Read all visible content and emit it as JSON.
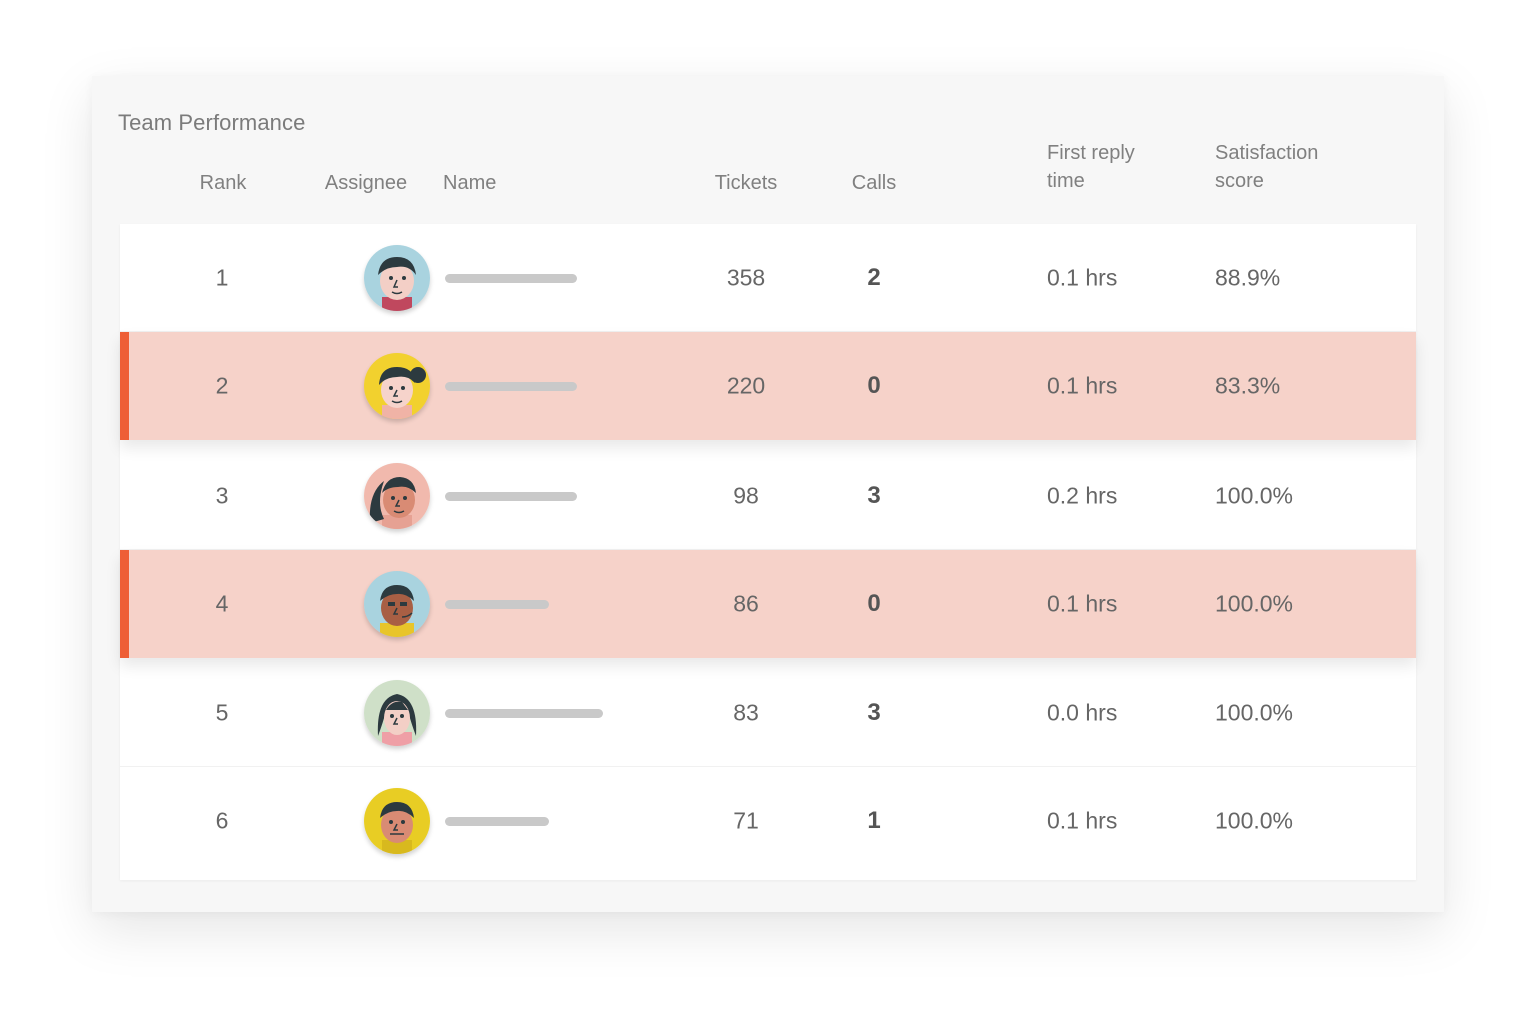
{
  "panel": {
    "title": "Team Performance"
  },
  "columns": {
    "rank": "Rank",
    "assignee": "Assignee",
    "name": "Name",
    "tickets": "Tickets",
    "calls": "Calls",
    "first_reply": "First reply\ntime",
    "satisfaction": "Satisfaction\nscore"
  },
  "rows": [
    {
      "rank": "1",
      "tickets": "358",
      "calls": "2",
      "first_reply": "0.1 hrs",
      "satisfaction": "88.9%",
      "highlighted": false,
      "avatar": "avatar-1"
    },
    {
      "rank": "2",
      "tickets": "220",
      "calls": "0",
      "first_reply": "0.1 hrs",
      "satisfaction": "83.3%",
      "highlighted": true,
      "avatar": "avatar-2"
    },
    {
      "rank": "3",
      "tickets": "98",
      "calls": "3",
      "first_reply": "0.2 hrs",
      "satisfaction": "100.0%",
      "highlighted": false,
      "avatar": "avatar-3"
    },
    {
      "rank": "4",
      "tickets": "86",
      "calls": "0",
      "first_reply": "0.1 hrs",
      "satisfaction": "100.0%",
      "highlighted": true,
      "avatar": "avatar-4"
    },
    {
      "rank": "5",
      "tickets": "83",
      "calls": "3",
      "first_reply": "0.0 hrs",
      "satisfaction": "100.0%",
      "highlighted": false,
      "avatar": "avatar-5"
    },
    {
      "rank": "6",
      "tickets": "71",
      "calls": "1",
      "first_reply": "0.1 hrs",
      "satisfaction": "100.0%",
      "highlighted": false,
      "avatar": "avatar-6"
    }
  ],
  "colors": {
    "highlight_row": "#f6d2c9",
    "highlight_accent": "#ee5e36",
    "name_placeholder": "#c9c9c9"
  }
}
